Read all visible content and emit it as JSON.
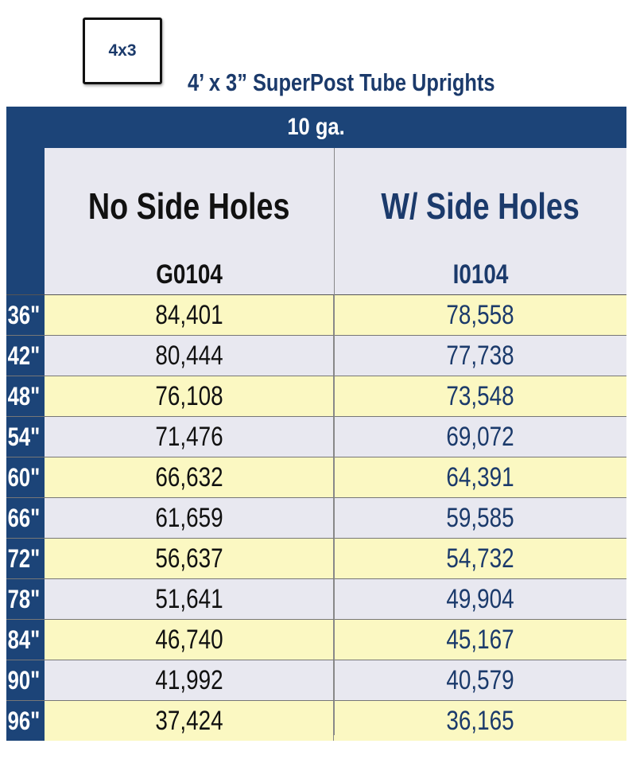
{
  "badge": {
    "label": "4x3"
  },
  "title": "4’ x 3” SuperPost Tube Uprights",
  "gauge": "10 ga.",
  "columns": [
    {
      "heading": "No Side Holes",
      "part": "G0104"
    },
    {
      "heading": "W/ Side Holes",
      "part": "I0104"
    }
  ],
  "rows": [
    {
      "length": "36\"",
      "no_side_holes": "84,401",
      "with_side_holes": "78,558"
    },
    {
      "length": "42\"",
      "no_side_holes": "80,444",
      "with_side_holes": "77,738"
    },
    {
      "length": "48\"",
      "no_side_holes": "76,108",
      "with_side_holes": "73,548"
    },
    {
      "length": "54\"",
      "no_side_holes": "71,476",
      "with_side_holes": "69,072"
    },
    {
      "length": "60\"",
      "no_side_holes": "66,632",
      "with_side_holes": "64,391"
    },
    {
      "length": "66\"",
      "no_side_holes": "61,659",
      "with_side_holes": "59,585"
    },
    {
      "length": "72\"",
      "no_side_holes": "56,637",
      "with_side_holes": "54,732"
    },
    {
      "length": "78\"",
      "no_side_holes": "51,641",
      "with_side_holes": "49,904"
    },
    {
      "length": "84\"",
      "no_side_holes": "46,740",
      "with_side_holes": "45,167"
    },
    {
      "length": "90\"",
      "no_side_holes": "41,992",
      "with_side_holes": "40,579"
    },
    {
      "length": "96\"",
      "no_side_holes": "37,424",
      "with_side_holes": "36,165"
    }
  ],
  "colors": {
    "navy": "#1c4478",
    "text_blue": "#1b3a6b",
    "row_yellow": "#fbf8c2",
    "row_grey": "#e8e8f0"
  }
}
